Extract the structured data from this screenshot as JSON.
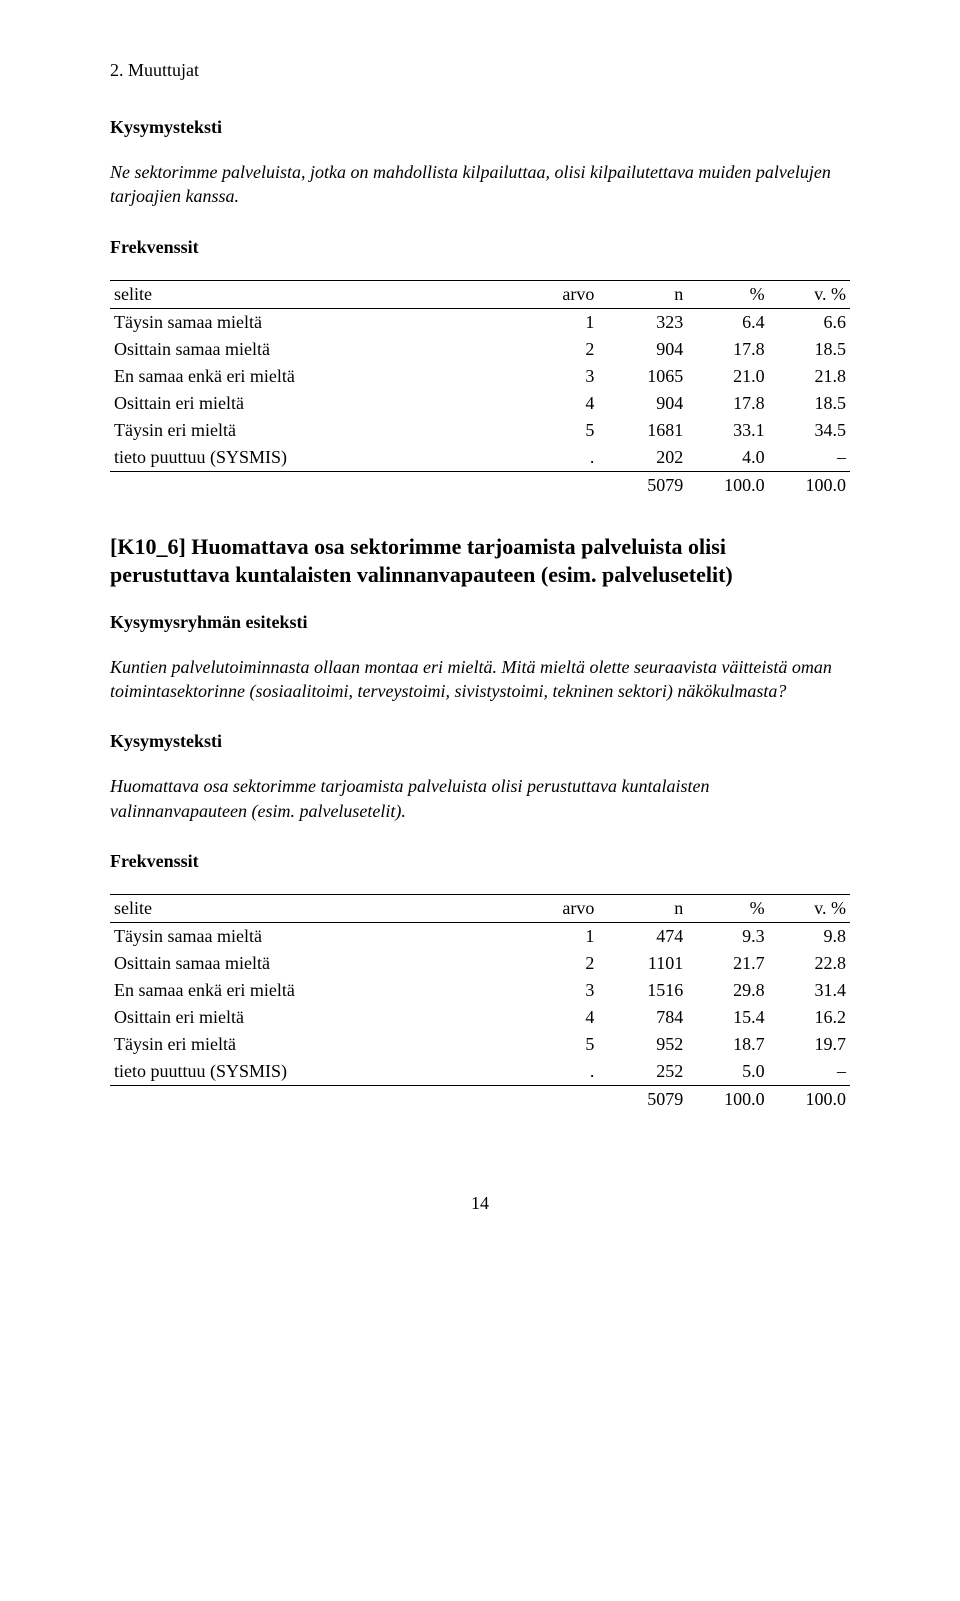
{
  "running_head": "2. Muuttujat",
  "section1": {
    "kysymysteksti_label": "Kysymysteksti",
    "kysymysteksti_text": "Ne sektorimme palveluista, jotka on mahdollista kilpailuttaa, olisi kilpailutettava muiden palvelujen tarjoajien kanssa.",
    "frekvenssit_label": "Frekvenssit"
  },
  "table_headers": {
    "selite": "selite",
    "arvo": "arvo",
    "n": "n",
    "pc": "%",
    "vpc": "v. %"
  },
  "table1": {
    "rows": [
      {
        "selite": "Täysin samaa mieltä",
        "arvo": "1",
        "n": "323",
        "pc": "6.4",
        "vpc": "6.6"
      },
      {
        "selite": "Osittain samaa mieltä",
        "arvo": "2",
        "n": "904",
        "pc": "17.8",
        "vpc": "18.5"
      },
      {
        "selite": "En samaa enkä eri mieltä",
        "arvo": "3",
        "n": "1065",
        "pc": "21.0",
        "vpc": "21.8"
      },
      {
        "selite": "Osittain eri mieltä",
        "arvo": "4",
        "n": "904",
        "pc": "17.8",
        "vpc": "18.5"
      },
      {
        "selite": "Täysin eri mieltä",
        "arvo": "5",
        "n": "1681",
        "pc": "33.1",
        "vpc": "34.5"
      },
      {
        "selite": "tieto puuttuu (SYSMIS)",
        "arvo": ".",
        "n": "202",
        "pc": "4.0",
        "vpc": "–"
      }
    ],
    "total": {
      "n": "5079",
      "pc": "100.0",
      "vpc": "100.0"
    }
  },
  "section2": {
    "heading": "[K10_6] Huomattava osa sektorimme tarjoamista palveluista olisi perustuttava kuntalaisten valinnanvapauteen (esim. palvelusetelit)",
    "esiteksti_label": "Kysymysryhmän esiteksti",
    "esiteksti_text": "Kuntien palvelutoiminnasta ollaan montaa eri mieltä. Mitä mieltä olette seuraavista väitteistä oman toimintasektorinne (sosiaalitoimi, terveystoimi, sivistystoimi, tekninen sektori) näkökulmasta?",
    "kysymysteksti_label": "Kysymysteksti",
    "kysymysteksti_text": "Huomattava osa sektorimme tarjoamista palveluista olisi perustuttava kuntalaisten valinnanvapauteen (esim. palvelusetelit).",
    "frekvenssit_label": "Frekvenssit"
  },
  "table2": {
    "rows": [
      {
        "selite": "Täysin samaa mieltä",
        "arvo": "1",
        "n": "474",
        "pc": "9.3",
        "vpc": "9.8"
      },
      {
        "selite": "Osittain samaa mieltä",
        "arvo": "2",
        "n": "1101",
        "pc": "21.7",
        "vpc": "22.8"
      },
      {
        "selite": "En samaa enkä eri mieltä",
        "arvo": "3",
        "n": "1516",
        "pc": "29.8",
        "vpc": "31.4"
      },
      {
        "selite": "Osittain eri mieltä",
        "arvo": "4",
        "n": "784",
        "pc": "15.4",
        "vpc": "16.2"
      },
      {
        "selite": "Täysin eri mieltä",
        "arvo": "5",
        "n": "952",
        "pc": "18.7",
        "vpc": "19.7"
      },
      {
        "selite": "tieto puuttuu (SYSMIS)",
        "arvo": ".",
        "n": "252",
        "pc": "5.0",
        "vpc": "–"
      }
    ],
    "total": {
      "n": "5079",
      "pc": "100.0",
      "vpc": "100.0"
    }
  },
  "page_number": "14"
}
